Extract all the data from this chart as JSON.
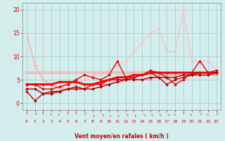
{
  "xlabel": "Vent moyen/en rafales ( km/h )",
  "x": [
    0,
    1,
    2,
    3,
    4,
    5,
    6,
    7,
    8,
    9,
    10,
    11,
    12,
    13,
    14,
    15,
    16,
    17,
    18,
    19,
    20,
    21,
    22,
    23
  ],
  "lines": [
    {
      "y": [
        15,
        8,
        5,
        4,
        3,
        3,
        3,
        3,
        4,
        4,
        4,
        5,
        5,
        5,
        5,
        5,
        6,
        6,
        6,
        6,
        6,
        6,
        6,
        6
      ],
      "color": "#ff8888",
      "alpha": 0.75,
      "lw": 1.0,
      "marker": "D",
      "ms": 2.0
    },
    {
      "y": [
        15,
        8,
        5,
        4,
        3,
        4,
        4,
        5,
        6,
        6,
        7,
        8,
        9,
        11,
        13,
        15,
        16,
        11,
        11,
        20,
        9,
        9,
        9,
        7
      ],
      "color": "#ffbbbb",
      "alpha": 0.85,
      "lw": 1.0,
      "marker": "D",
      "ms": 2.0
    },
    {
      "y": [
        6.5,
        6.5,
        6.5,
        6.5,
        6.5,
        6.5,
        6.5,
        6.5,
        6.5,
        6.5,
        6.5,
        6.5,
        6.5,
        6.5,
        6.5,
        6.5,
        6.5,
        6.5,
        6.5,
        6.5,
        6.5,
        6.5,
        6.5,
        6.5
      ],
      "color": "#ffaaaa",
      "alpha": 0.7,
      "lw": 2.8,
      "marker": null,
      "ms": 0
    },
    {
      "y": [
        2.5,
        0.5,
        2,
        2.5,
        2.5,
        3,
        3,
        3,
        4,
        4,
        5,
        5,
        5,
        5.5,
        6,
        6.5,
        5.5,
        4,
        5,
        5.5,
        6,
        6.5,
        6.5,
        6.5
      ],
      "color": "#cc0000",
      "alpha": 1.0,
      "lw": 1.0,
      "marker": "D",
      "ms": 2.0
    },
    {
      "y": [
        4,
        4,
        4,
        4,
        4.5,
        4.5,
        4.5,
        4,
        4,
        4.5,
        5,
        5.5,
        5.5,
        6,
        6,
        6.5,
        6.5,
        6.5,
        6.5,
        6.5,
        6.5,
        6.5,
        6.5,
        6.5
      ],
      "color": "#ff0000",
      "alpha": 1.0,
      "lw": 2.0,
      "marker": "D",
      "ms": 2.0
    },
    {
      "y": [
        4,
        4,
        3,
        3,
        3.5,
        4,
        5,
        6,
        5.5,
        5,
        6,
        9,
        5.5,
        5.5,
        6,
        7,
        6.5,
        5.5,
        4,
        5,
        6.5,
        9,
        6.5,
        7
      ],
      "color": "#ee0000",
      "alpha": 1.0,
      "lw": 1.0,
      "marker": "D",
      "ms": 2.0
    },
    {
      "y": [
        3,
        3,
        2,
        2,
        2.5,
        3,
        3.5,
        3,
        3,
        3.5,
        4,
        4.5,
        5,
        5,
        5,
        5.5,
        5.5,
        5.5,
        5.5,
        6,
        6,
        6,
        6,
        6.5
      ],
      "color": "#aa0000",
      "alpha": 1.0,
      "lw": 1.0,
      "marker": "D",
      "ms": 2.0
    }
  ],
  "ylim": [
    -1.5,
    21.5
  ],
  "xlim": [
    -0.5,
    23.5
  ],
  "yticks": [
    0,
    5,
    10,
    15,
    20
  ],
  "bg_color": "#d4eeee",
  "grid_color": "#aad4d4",
  "tick_color": "#cc0000",
  "label_color": "#cc0000"
}
